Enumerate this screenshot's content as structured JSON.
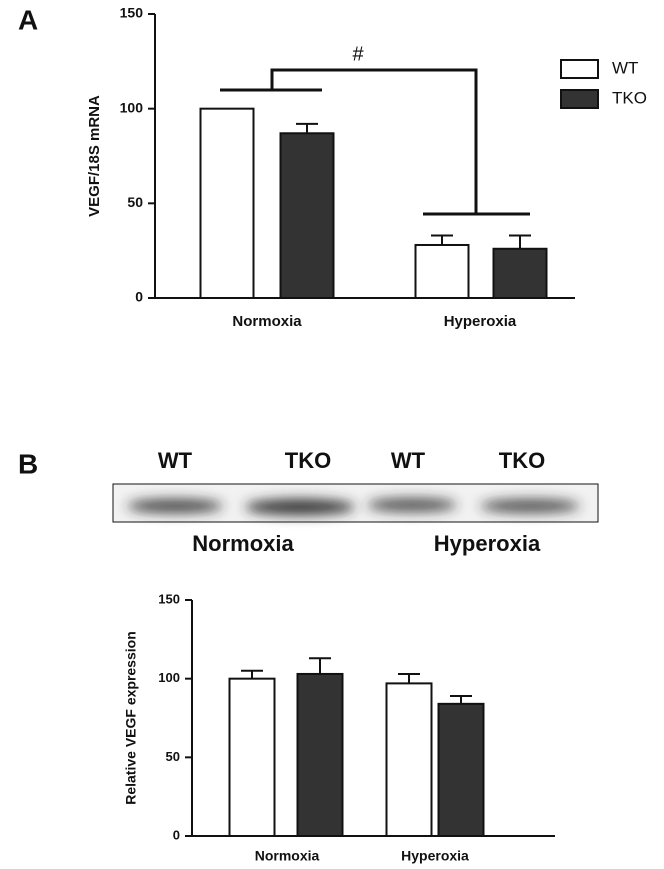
{
  "panel_labels": [
    "A",
    "B"
  ],
  "blot": {
    "lanes": [
      "WT",
      "TKO",
      "WT",
      "TKO"
    ],
    "groups": [
      "Normoxia",
      "Hyperoxia"
    ]
  },
  "chart_data": [
    {
      "type": "bar",
      "ylabel": "VEGF/18S mRNA",
      "categories": [
        "Normoxia",
        "Hyperoxia"
      ],
      "series": [
        {
          "name": "WT",
          "color": "#ffffff",
          "values": [
            100,
            28
          ],
          "errors": [
            null,
            5
          ]
        },
        {
          "name": "TKO",
          "color": "#333333",
          "values": [
            87,
            26
          ],
          "errors": [
            5,
            7
          ]
        }
      ],
      "ylim": [
        0,
        150
      ],
      "yticks": [
        0,
        50,
        100,
        150
      ],
      "legend": "upper right",
      "annotation": "#"
    },
    {
      "type": "bar",
      "ylabel": "Relative VEGF expression",
      "categories": [
        "Normoxia",
        "Hyperoxia"
      ],
      "series": [
        {
          "color": "#ffffff",
          "values": [
            100,
            97
          ],
          "errors": [
            5,
            6
          ]
        },
        {
          "color": "#333333",
          "values": [
            103,
            84
          ],
          "errors": [
            10,
            5
          ]
        }
      ],
      "ylim": [
        0,
        150
      ],
      "yticks": [
        0,
        50,
        100,
        150
      ]
    }
  ]
}
